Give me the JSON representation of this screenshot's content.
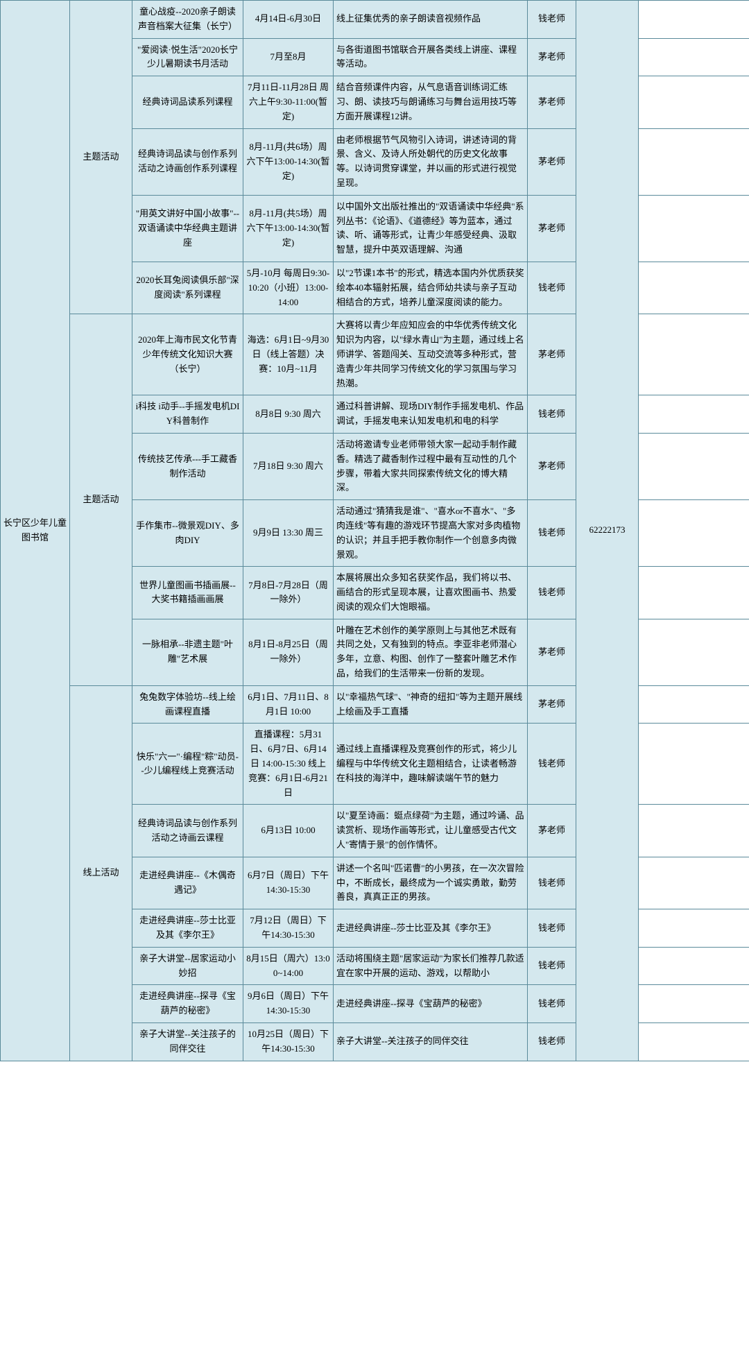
{
  "colors": {
    "cell_bg": "#d4e8ee",
    "border": "#5a8a9a",
    "text": "#000000"
  },
  "library": "长宁区少年儿童图书馆",
  "phone": "62222173",
  "sections": [
    {
      "category": "主题活动",
      "rows": [
        {
          "title": "童心战疫--2020亲子朗读声音档案大征集（长宁）",
          "time": "4月14日-6月30日",
          "desc": "线上征集优秀的亲子朗读音视频作品",
          "teacher": "钱老师"
        },
        {
          "title": "\"爱阅读·悦生活\"2020长宁少儿暑期读书月活动",
          "time": "7月至8月",
          "desc": "与各街道图书馆联合开展各类线上讲座、课程等活动。",
          "teacher": "茅老师"
        },
        {
          "title": "经典诗词品读系列课程",
          "time": "7月11日-11月28日 周六上午9:30-11:00(暂定)",
          "desc": "结合音频课件内容，从气息语音训练词汇练习、朗、读技巧与朗诵练习与舞台运用技巧等方面开展课程12讲。",
          "teacher": "茅老师"
        },
        {
          "title": "经典诗词品读与创作系列活动之诗画创作系列课程",
          "time": "8月-11月(共6场）周六下午13:00-14:30(暂定)",
          "desc": "由老师根据节气风物引入诗词，讲述诗词的背景、含义、及诗人所处朝代的历史文化故事等。以诗词贯穿课堂，并以画的形式进行视觉呈现。",
          "teacher": "茅老师"
        },
        {
          "title": "\"用英文讲好中国小故事\"--双语诵读中华经典主题讲座",
          "time": "8月-11月(共5场）周六下午13:00-14:30(暂定)",
          "desc": "以中国外文出版社推出的\"双语诵读中华经典\"系列丛书：《论语》、《道德经》等为蓝本，通过读、听、诵等形式，让青少年感受经典、汲取智慧，提升中英双语理解、沟通",
          "teacher": "茅老师"
        },
        {
          "title": "2020长耳兔阅读俱乐部\"深度阅读\"系列课程",
          "time": "5月-10月 每周日9:30-10:20（小班）13:00-14:00",
          "desc": "以\"2节课1本书\"的形式，精选本国内外优质获奖绘本40本辐射拓展，结合师幼共读与亲子互动相结合的方式，培养儿童深度阅读的能力。",
          "teacher": "钱老师"
        }
      ]
    },
    {
      "category": "主题活动",
      "rows": [
        {
          "title": "2020年上海市民文化节青少年传统文化知识大赛（长宁）",
          "time": "海选：6月1日~9月30日（线上答题）决赛：10月~11月",
          "desc": "大赛将以青少年应知应会的中华优秀传统文化知识为内容，以\"绿水青山\"为主题，通过线上名师讲学、答题闯关、互动交流等多种形式，营造青少年共同学习传统文化的学习氛围与学习热潮。",
          "teacher": "茅老师"
        },
        {
          "title": "i科技 i动手--手摇发电机DIY科普制作",
          "time": "8月8日 9:30 周六",
          "desc": "通过科普讲解、现场DIY制作手摇发电机、作品调试，手摇发电来认知发电机和电的科学",
          "teacher": "钱老师"
        },
        {
          "title": "传统技艺传承---手工藏香制作活动",
          "time": "7月18日 9:30 周六",
          "desc": "活动将邀请专业老师带领大家一起动手制作藏香。精选了藏香制作过程中最有互动性的几个步骤，带着大家共同探索传统文化的博大精深。",
          "teacher": "茅老师"
        },
        {
          "title": "手作集市--微景观DIY、多肉DIY",
          "time": "9月9日 13:30 周三",
          "desc": "活动通过\"猜猜我是谁\"、\"喜水or不喜水\"、\"多肉连线\"等有趣的游戏环节提高大家对多肉植物的认识；并且手把手教你制作一个创意多肉微景观。",
          "teacher": "钱老师"
        },
        {
          "title": "世界儿童图画书插画展--大奖书籍插画画展",
          "time": "7月8日-7月28日（周一除外）",
          "desc": "本展将展出众多知名获奖作品，我们将以书、画结合的形式呈现本展，让喜欢图画书、热爱阅读的观众们大饱眼福。",
          "teacher": "钱老师"
        },
        {
          "title": "一脉相承--非遗主题\"叶雕\"艺术展",
          "time": "8月1日-8月25日（周一除外）",
          "desc": "叶雕在艺术创作的美学原则上与其他艺术既有共同之处，又有独到的特点。李亚非老师潜心多年，立意、构图、创作了一整套叶雕艺术作品，给我们的生活带来一份新的发现。",
          "teacher": "茅老师"
        }
      ]
    },
    {
      "category": "线上活动",
      "rows": [
        {
          "title": "兔兔数字体验坊--线上绘画课程直播",
          "time": "6月1日、7月11日、8月1日 10:00",
          "desc": "以\"幸福热气球\"、\"神奇的纽扣\"等为主题开展线上绘画及手工直播",
          "teacher": "茅老师"
        },
        {
          "title": "快乐\"六一\"·编程\"粽\"动员--少儿编程线上竞赛活动",
          "time": "直播课程：5月31日、6月7日、6月14日 14:00-15:30 线上竞赛：6月1日-6月21日",
          "desc": "通过线上直播课程及竞赛创作的形式，将少儿编程与中华传统文化主题相结合，让读者畅游在科技的海洋中，趣味解读端午节的魅力",
          "teacher": "钱老师"
        },
        {
          "title": "经典诗词品读与创作系列活动之诗画云课程",
          "time": "6月13日 10:00",
          "desc": "以\"夏至诗画：蜓点绿荷\"为主题，通过吟诵、品读赏析、现场作画等形式，让儿童感受古代文人\"寄情于景\"的创作情怀。",
          "teacher": "茅老师"
        },
        {
          "title": "走进经典讲座--《木偶奇遇记》",
          "time": "6月7日（周日）下午14:30-15:30",
          "desc": "讲述一个名叫\"匹诺曹\"的小男孩，在一次次冒险中，不断成长，最终成为一个诚实勇敢，勤劳善良，真真正正的男孩。",
          "teacher": "钱老师"
        },
        {
          "title": "走进经典讲座--莎士比亚及其《李尔王》",
          "time": "7月12日（周日）下午14:30-15:30",
          "desc": "走进经典讲座--莎士比亚及其《李尔王》",
          "teacher": "钱老师"
        },
        {
          "title": "亲子大讲堂--居家运动小妙招",
          "time": "8月15日（周六）13:00~14:00",
          "desc": "活动将围绕主题\"居家运动\"为家长们推荐几款适宜在家中开展的运动、游戏，以帮助小",
          "teacher": "钱老师"
        },
        {
          "title": "走进经典讲座--探寻《宝葫芦的秘密》",
          "time": "9月6日（周日）下午14:30-15:30",
          "desc": "走进经典讲座--探寻《宝葫芦的秘密》",
          "teacher": "钱老师"
        },
        {
          "title": "亲子大讲堂--关注孩子的同伴交往",
          "time": "10月25日（周日）下午14:30-15:30",
          "desc": "亲子大讲堂--关注孩子的同伴交往",
          "teacher": "钱老师"
        }
      ]
    }
  ]
}
